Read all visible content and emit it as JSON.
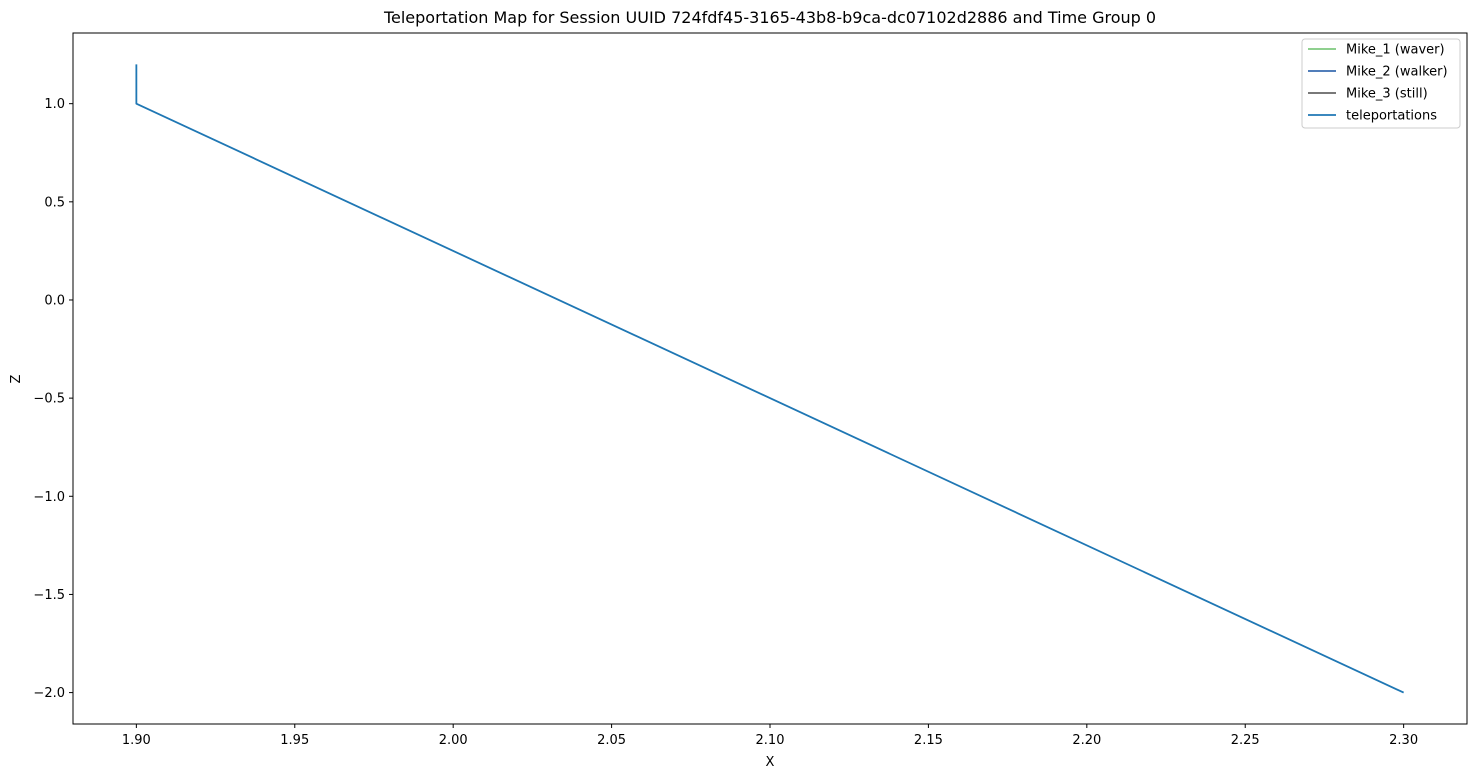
{
  "chart_data": {
    "type": "line",
    "title": "Teleportation Map for Session UUID 724fdf45-3165-43b8-b9ca-dc07102d2886 and Time Group 0",
    "xlabel": "X",
    "ylabel": "Z",
    "xlim": [
      1.88,
      2.32
    ],
    "ylim": [
      -2.16,
      1.36
    ],
    "xticks": [
      1.9,
      1.95,
      2.0,
      2.05,
      2.1,
      2.15,
      2.2,
      2.25,
      2.3
    ],
    "xtick_labels": [
      "1.90",
      "1.95",
      "2.00",
      "2.05",
      "2.10",
      "2.15",
      "2.20",
      "2.25",
      "2.30"
    ],
    "yticks": [
      1.0,
      0.5,
      0.0,
      -0.5,
      -1.0,
      -1.5,
      -2.0
    ],
    "ytick_labels": [
      "1.0",
      "0.5",
      "0.0",
      "−0.5",
      "−1.0",
      "−1.5",
      "−2.0"
    ],
    "grid": false,
    "legend_position": "top-right",
    "series": [
      {
        "name": "Mike_1 (waver)",
        "color": "#7fc97f",
        "x": [],
        "y": []
      },
      {
        "name": "Mike_2 (walker)",
        "color": "#386cb0",
        "x": [],
        "y": []
      },
      {
        "name": "Mike_3 (still)",
        "color": "#666666",
        "x": [],
        "y": []
      },
      {
        "name": "teleportations",
        "color": "#1f77b4",
        "x": [
          1.9,
          1.9,
          2.3
        ],
        "y": [
          1.2,
          1.0,
          -2.0
        ]
      }
    ]
  }
}
